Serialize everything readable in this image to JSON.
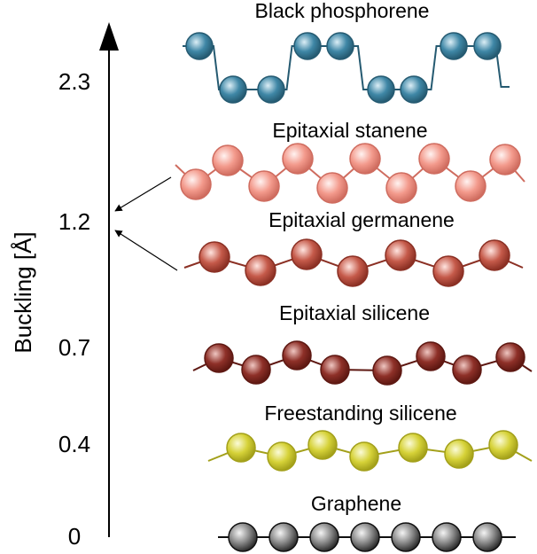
{
  "axis": {
    "label": "Buckling [Å]",
    "ticks": [
      "2.3",
      "1.2",
      "0.7",
      "0.4",
      "0"
    ]
  },
  "materials": [
    {
      "id": "black-phosphorene",
      "label": "Black phosphorene",
      "buckling": "2.3",
      "color": "#3f87a6",
      "dark": "#255a71",
      "light": "#dbeef6"
    },
    {
      "id": "epitaxial-stanene",
      "label": "Epitaxial stanene",
      "buckling": "1.2",
      "color": "#f39a8c",
      "dark": "#cf6c5f",
      "light": "#fff3f1"
    },
    {
      "id": "epitaxial-germanene",
      "label": "Epitaxial germanene",
      "buckling": "1.2",
      "color": "#c55a4a",
      "dark": "#8b3024",
      "light": "#ffe4df"
    },
    {
      "id": "epitaxial-silicene",
      "label": "Epitaxial silicene",
      "buckling": "0.7",
      "color": "#8e3028",
      "dark": "#5e1812",
      "light": "#efc6c1"
    },
    {
      "id": "freestanding-silicene",
      "label": "Freestanding silicene",
      "buckling": "0.4",
      "color": "#d6d238",
      "dark": "#a3a01a",
      "light": "#fbfbd8"
    },
    {
      "id": "graphene",
      "label": "Graphene",
      "buckling": "0",
      "color": "#8a8a8a",
      "dark": "#2e2e2e",
      "light": "#f4f4f4"
    }
  ]
}
